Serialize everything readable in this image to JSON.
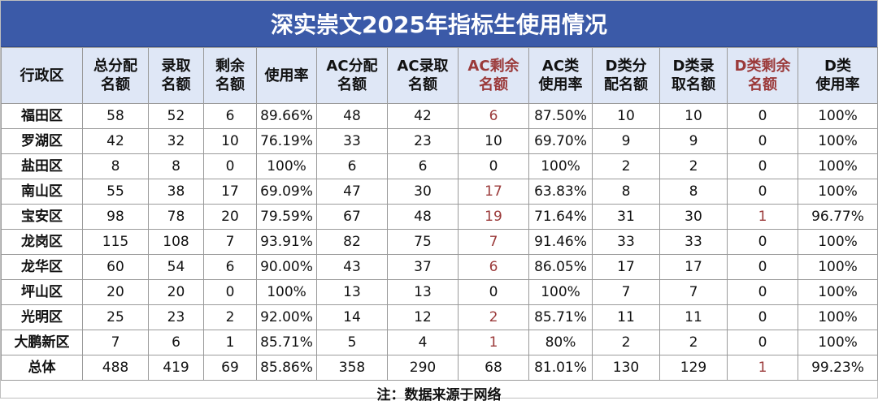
{
  "title": "深实崇文2025年指标生使用情况",
  "headers": [
    {
      "line1": "行政区",
      "line2": "",
      "red": false
    },
    {
      "line1": "总分配",
      "line2": "名额",
      "red": false
    },
    {
      "line1": "录取",
      "line2": "名额",
      "red": false
    },
    {
      "line1": "剩余",
      "line2": "名额",
      "red": false
    },
    {
      "line1": "使用率",
      "line2": "",
      "red": false
    },
    {
      "line1": "AC分配",
      "line2": "名额",
      "red": false
    },
    {
      "line1": "AC录取",
      "line2": "名额",
      "red": false
    },
    {
      "line1": "AC剩余",
      "line2": "名额",
      "red": true
    },
    {
      "line1": "AC类",
      "line2": "使用率",
      "red": false
    },
    {
      "line1": "D类分",
      "line2": "配名额",
      "red": false
    },
    {
      "line1": "D类录",
      "line2": "取名额",
      "red": false
    },
    {
      "line1": "D类剩余",
      "line2": "名额",
      "red": true
    },
    {
      "line1": "D类",
      "line2": "使用率",
      "red": false
    }
  ],
  "red_columns": [
    7,
    11
  ],
  "rows": [
    [
      "福田区",
      "58",
      "52",
      "6",
      "89.66%",
      "48",
      "42",
      "6",
      "87.50%",
      "10",
      "10",
      "0",
      "100%"
    ],
    [
      "罗湖区",
      "42",
      "32",
      "10",
      "76.19%",
      "33",
      "23",
      "10",
      "69.70%",
      "9",
      "9",
      "0",
      "100%"
    ],
    [
      "盐田区",
      "8",
      "8",
      "0",
      "100%",
      "6",
      "6",
      "0",
      "100%",
      "2",
      "2",
      "0",
      "100%"
    ],
    [
      "南山区",
      "55",
      "38",
      "17",
      "69.09%",
      "47",
      "30",
      "17",
      "63.83%",
      "8",
      "8",
      "0",
      "100%"
    ],
    [
      "宝安区",
      "98",
      "78",
      "20",
      "79.59%",
      "67",
      "48",
      "19",
      "71.64%",
      "31",
      "30",
      "1",
      "96.77%"
    ],
    [
      "龙岗区",
      "115",
      "108",
      "7",
      "93.91%",
      "82",
      "75",
      "7",
      "91.46%",
      "33",
      "33",
      "0",
      "100%"
    ],
    [
      "龙华区",
      "60",
      "54",
      "6",
      "90.00%",
      "43",
      "37",
      "6",
      "86.05%",
      "17",
      "17",
      "0",
      "100%"
    ],
    [
      "坪山区",
      "20",
      "20",
      "0",
      "100%",
      "13",
      "13",
      "0",
      "100%",
      "7",
      "7",
      "0",
      "100%"
    ],
    [
      "光明区",
      "25",
      "23",
      "2",
      "92.00%",
      "14",
      "12",
      "2",
      "85.71%",
      "11",
      "11",
      "0",
      "100%"
    ],
    [
      "大鹏新区",
      "7",
      "6",
      "1",
      "85.71%",
      "5",
      "4",
      "1",
      "80%",
      "2",
      "2",
      "0",
      "100%"
    ],
    [
      "总体",
      "488",
      "419",
      "69",
      "85.86%",
      "358",
      "290",
      "68",
      "81.01%",
      "130",
      "129",
      "1",
      "99.23%"
    ]
  ],
  "red_cells": [
    [
      0,
      7
    ],
    [
      3,
      7
    ],
    [
      4,
      7
    ],
    [
      4,
      11
    ],
    [
      5,
      7
    ],
    [
      6,
      7
    ],
    [
      8,
      7
    ],
    [
      9,
      7
    ],
    [
      10,
      11
    ]
  ],
  "note": "注：数据来源于网络",
  "colors": {
    "header_bg": "#3b5aa8",
    "subheader_bg": "#dfe7f6",
    "accent_red": "#9b3a3a"
  }
}
